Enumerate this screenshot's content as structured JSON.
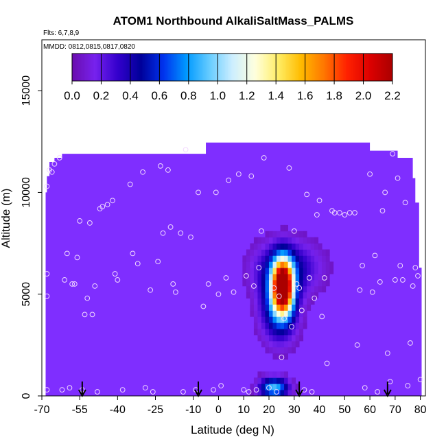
{
  "chart_data": {
    "type": "heatmap",
    "title": "ATOM1 Northbound AlkaliSaltMass_PALMS",
    "flights_note": "Flts: 6,7,8,9",
    "dates_note": "MMDD: 0812,0815,0817,0820",
    "xlabel": "Latitude (deg N)",
    "ylabel": "Altitude (m)",
    "xlim": [
      -70,
      82
    ],
    "ylim": [
      0,
      17500
    ],
    "xticks": [
      -70,
      -55,
      -40,
      -25,
      -10,
      0,
      10,
      20,
      30,
      40,
      50,
      60,
      70,
      80
    ],
    "xtick_labels": [
      "-70",
      "-55",
      "-40",
      "-25",
      "-10",
      "0",
      "10",
      "20",
      "30",
      "40",
      "50",
      "60",
      "70",
      "80"
    ],
    "yticks": [
      0,
      5000,
      10000,
      15000
    ],
    "ytick_labels": [
      "0",
      "5000",
      "10000",
      "15000"
    ],
    "colorbar": {
      "min": 0.0,
      "max": 2.2,
      "ticks": [
        "0.0",
        "0.2",
        "0.4",
        "0.6",
        "0.8",
        "1.0",
        "1.2",
        "1.4",
        "1.6",
        "1.8",
        "2.0",
        "2.2"
      ],
      "colors": [
        "#6a0dad",
        "#7722ee",
        "#3300cc",
        "#000099",
        "#0033ee",
        "#0099ff",
        "#66ccff",
        "#cceeff",
        "#ffffdd",
        "#ffee66",
        "#ffbb00",
        "#ff7700",
        "#ff2200",
        "#dd0000",
        "#aa0000"
      ]
    },
    "background_value_color": "#7f2eff",
    "coverage_profile": {
      "lat": [
        -68.5,
        -68,
        -67,
        -65,
        -62,
        -45,
        -5,
        20,
        30,
        45,
        60,
        69,
        71,
        72,
        73,
        74.5,
        76,
        77,
        78,
        79.5,
        80.5
      ],
      "top": [
        10000,
        10800,
        11500,
        11700,
        11900,
        11900,
        12450,
        12450,
        12450,
        12450,
        12050,
        12050,
        11700,
        11700,
        11700,
        11700,
        11700,
        10700,
        9500,
        6300,
        5300
      ]
    },
    "plumes": [
      {
        "lat": 25.5,
        "alt": 5400,
        "peak": 2.2,
        "sig_lat": 2.8,
        "sig_alt": 900
      },
      {
        "lat": 24.0,
        "alt": 4500,
        "peak": 0.7,
        "sig_lat": 5.0,
        "sig_alt": 1200
      },
      {
        "lat": 27.0,
        "alt": 6300,
        "peak": 0.45,
        "sig_lat": 9.0,
        "sig_alt": 900
      },
      {
        "lat": 22.0,
        "alt": 400,
        "peak": 0.9,
        "sig_lat": 4.0,
        "sig_alt": 350
      }
    ],
    "samples": [
      [
        -68,
        10300
      ],
      [
        -68,
        6000
      ],
      [
        -68,
        4900
      ],
      [
        -68,
        300
      ],
      [
        -67,
        11100
      ],
      [
        -66,
        11000
      ],
      [
        -65,
        11400
      ],
      [
        -63,
        11700
      ],
      [
        -62,
        300
      ],
      [
        -61,
        5700
      ],
      [
        -60,
        7000
      ],
      [
        -59,
        400
      ],
      [
        -58,
        5500
      ],
      [
        -57,
        5500
      ],
      [
        -56,
        6800
      ],
      [
        -55,
        8600
      ],
      [
        -54,
        300
      ],
      [
        -53,
        4000
      ],
      [
        -52,
        4800
      ],
      [
        -51,
        8500
      ],
      [
        -50,
        4000
      ],
      [
        -49,
        5400
      ],
      [
        -48,
        200
      ],
      [
        -47,
        9200
      ],
      [
        -46,
        9300
      ],
      [
        -44,
        9400
      ],
      [
        -42,
        9600
      ],
      [
        -41,
        6000
      ],
      [
        -40,
        5700
      ],
      [
        -38,
        300
      ],
      [
        -35,
        10400
      ],
      [
        -34,
        7000
      ],
      [
        -32,
        6500
      ],
      [
        -30,
        11000
      ],
      [
        -29,
        400
      ],
      [
        -27,
        5200
      ],
      [
        -26,
        200
      ],
      [
        -24,
        6600
      ],
      [
        -23,
        11300
      ],
      [
        -22,
        8000
      ],
      [
        -20,
        11100
      ],
      [
        -19,
        8300
      ],
      [
        -18,
        5500
      ],
      [
        -17,
        5100
      ],
      [
        -15,
        8000
      ],
      [
        -14,
        200
      ],
      [
        -13,
        12100
      ],
      [
        -11,
        7800
      ],
      [
        -9,
        300
      ],
      [
        -8,
        10000
      ],
      [
        -6,
        4400
      ],
      [
        -4,
        5500
      ],
      [
        -2,
        300
      ],
      [
        -1,
        10000
      ],
      [
        0,
        5000
      ],
      [
        1,
        500
      ],
      [
        3,
        5800
      ],
      [
        4,
        10600
      ],
      [
        6,
        5100
      ],
      [
        8,
        10900
      ],
      [
        10,
        300
      ],
      [
        11,
        5900
      ],
      [
        12,
        200
      ],
      [
        13,
        10800
      ],
      [
        14,
        5400
      ],
      [
        15,
        300
      ],
      [
        16,
        6300
      ],
      [
        17,
        8100
      ],
      [
        18,
        11700
      ],
      [
        20,
        400
      ],
      [
        22,
        5300
      ],
      [
        23,
        200
      ],
      [
        24,
        4900
      ],
      [
        25,
        1900
      ],
      [
        26,
        3800
      ],
      [
        28,
        11200
      ],
      [
        29,
        3400
      ],
      [
        30,
        8100
      ],
      [
        31,
        5500
      ],
      [
        32,
        5300
      ],
      [
        33,
        4200
      ],
      [
        34,
        300
      ],
      [
        35,
        9900
      ],
      [
        36,
        5800
      ],
      [
        37,
        200
      ],
      [
        38,
        4800
      ],
      [
        39,
        8900
      ],
      [
        40,
        9600
      ],
      [
        41,
        3900
      ],
      [
        42,
        5800
      ],
      [
        43,
        1600
      ],
      [
        45,
        9100
      ],
      [
        46,
        9000
      ],
      [
        48,
        9000
      ],
      [
        50,
        8900
      ],
      [
        52,
        9000
      ],
      [
        54,
        9000
      ],
      [
        55,
        2500
      ],
      [
        56,
        5200
      ],
      [
        57,
        6400
      ],
      [
        58,
        400
      ],
      [
        60,
        10900
      ],
      [
        61,
        5100
      ],
      [
        62,
        6900
      ],
      [
        63,
        200
      ],
      [
        64,
        5600
      ],
      [
        65,
        9100
      ],
      [
        66,
        10000
      ],
      [
        67,
        2100
      ],
      [
        68,
        700
      ],
      [
        69,
        11900
      ],
      [
        70,
        5700
      ],
      [
        71,
        10700
      ],
      [
        72,
        6400
      ],
      [
        73,
        5700
      ],
      [
        74,
        9500
      ],
      [
        75,
        500
      ],
      [
        76,
        2600
      ],
      [
        77,
        5400
      ],
      [
        78,
        6300
      ],
      [
        79,
        5900
      ],
      [
        80,
        800
      ]
    ],
    "flight_markers": [
      -54,
      -8,
      32,
      67
    ],
    "grid": false,
    "legend": "top"
  }
}
